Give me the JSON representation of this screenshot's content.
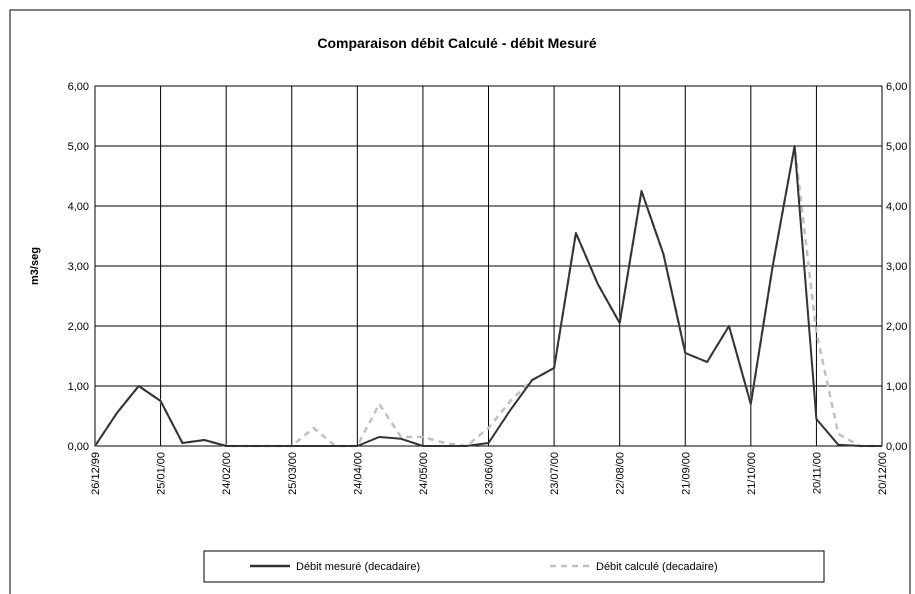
{
  "chart_data": {
    "type": "line",
    "title": "Comparaison débit Calculé  - débit Mesuré",
    "y_label": "m3/seg",
    "categories": [
      "26/12/99",
      null,
      null,
      "25/01/00",
      null,
      null,
      "24/02/00",
      null,
      null,
      "25/03/00",
      null,
      null,
      "24/04/00",
      null,
      null,
      "24/05/00",
      null,
      null,
      "23/06/00",
      null,
      null,
      "23/07/00",
      null,
      null,
      "22/08/00",
      null,
      null,
      "21/09/00",
      null,
      null,
      "21/10/00",
      null,
      null,
      "20/11/00",
      null,
      null,
      "20/12/00"
    ],
    "series": [
      {
        "name": "Débit mesuré (decadaire)",
        "color": "#333333",
        "values": [
          0,
          0.55,
          1.0,
          0.75,
          0.05,
          0.1,
          0,
          0,
          0,
          0,
          0,
          0,
          0,
          0.15,
          0.12,
          0,
          0,
          0,
          0.05,
          0.6,
          1.1,
          1.3,
          3.55,
          2.7,
          2.05,
          4.25,
          3.2,
          1.55,
          1.4,
          2.0,
          0.7,
          3.0,
          5.0,
          0.45,
          0.02,
          0,
          0
        ]
      },
      {
        "name": "Débit calculé (decadaire)",
        "color": "#c0c0c0",
        "values": [
          0,
          0.55,
          1.0,
          0.75,
          0.05,
          0.1,
          0,
          0,
          0,
          0,
          0.3,
          0,
          0,
          0.7,
          0.15,
          0.15,
          0.05,
          0,
          0.3,
          0.75,
          1.1,
          1.3,
          3.55,
          2.7,
          2.05,
          4.25,
          3.2,
          1.55,
          1.4,
          2.0,
          0.7,
          3.0,
          5.0,
          1.9,
          0.2,
          0,
          0
        ]
      }
    ],
    "ylim": [
      0,
      6
    ],
    "yticks": [
      {
        "value": 0,
        "label": "0,00"
      },
      {
        "value": 1,
        "label": "1,00"
      },
      {
        "value": 2,
        "label": "2,00"
      },
      {
        "value": 3,
        "label": "3,00"
      },
      {
        "value": 4,
        "label": "4,00"
      },
      {
        "value": 5,
        "label": "5,00"
      },
      {
        "value": 6,
        "label": "6,00"
      }
    ],
    "grid": true,
    "legend": "bottom"
  }
}
